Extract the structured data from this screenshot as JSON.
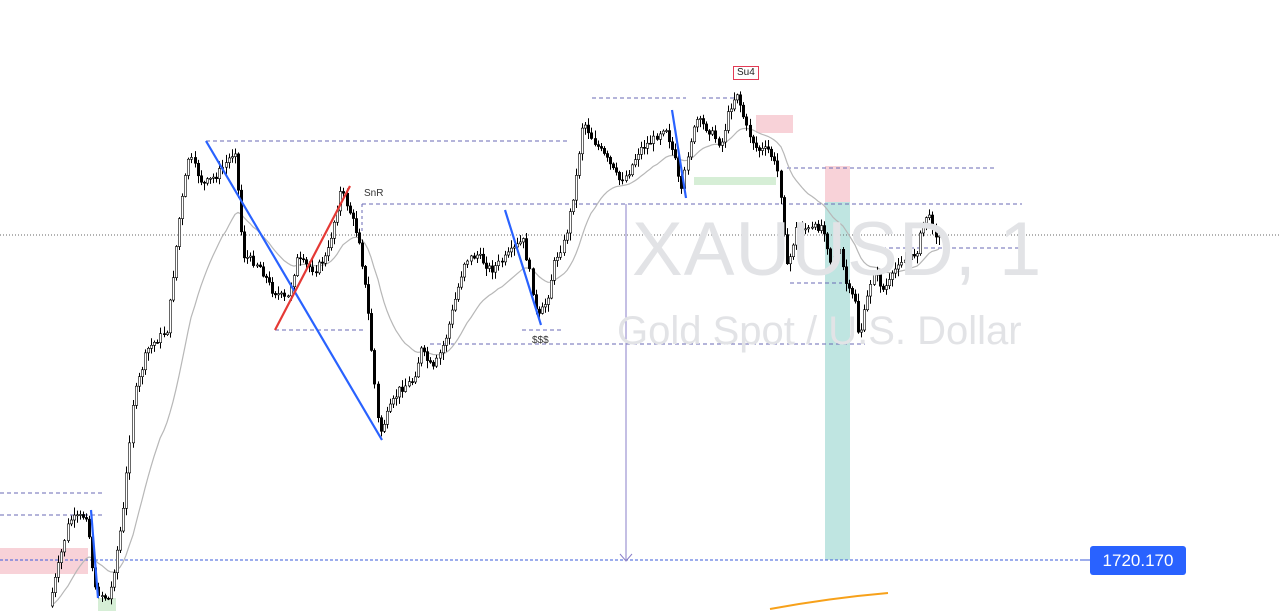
{
  "watermark": {
    "symbol": "XAUUSD, 1",
    "description": "Gold Spot / U.S. Dollar"
  },
  "price_label": "1720.170",
  "annotations": {
    "snr": "SnR",
    "sss": "$$$",
    "su4": "Su4"
  },
  "colors": {
    "up_candle": "#ffffff",
    "down_candle": "#000000",
    "wick": "#000000",
    "blue_leg": "#2962ff",
    "red_leg": "#e53935",
    "ma_line": "#b7b7b7",
    "orange_line": "#f7a11a",
    "level_dash": "#6a6ab5",
    "price_line": "#3b5bdb",
    "long_zone": "#bfe5e1",
    "short_zone": "#f8d2d8",
    "demand_zone": "#d6eed6"
  },
  "chart_data": {
    "type": "candlestick",
    "symbol": "XAUUSD",
    "timeframe": "1",
    "highlighted_price": 1720.17,
    "candles": []
  }
}
